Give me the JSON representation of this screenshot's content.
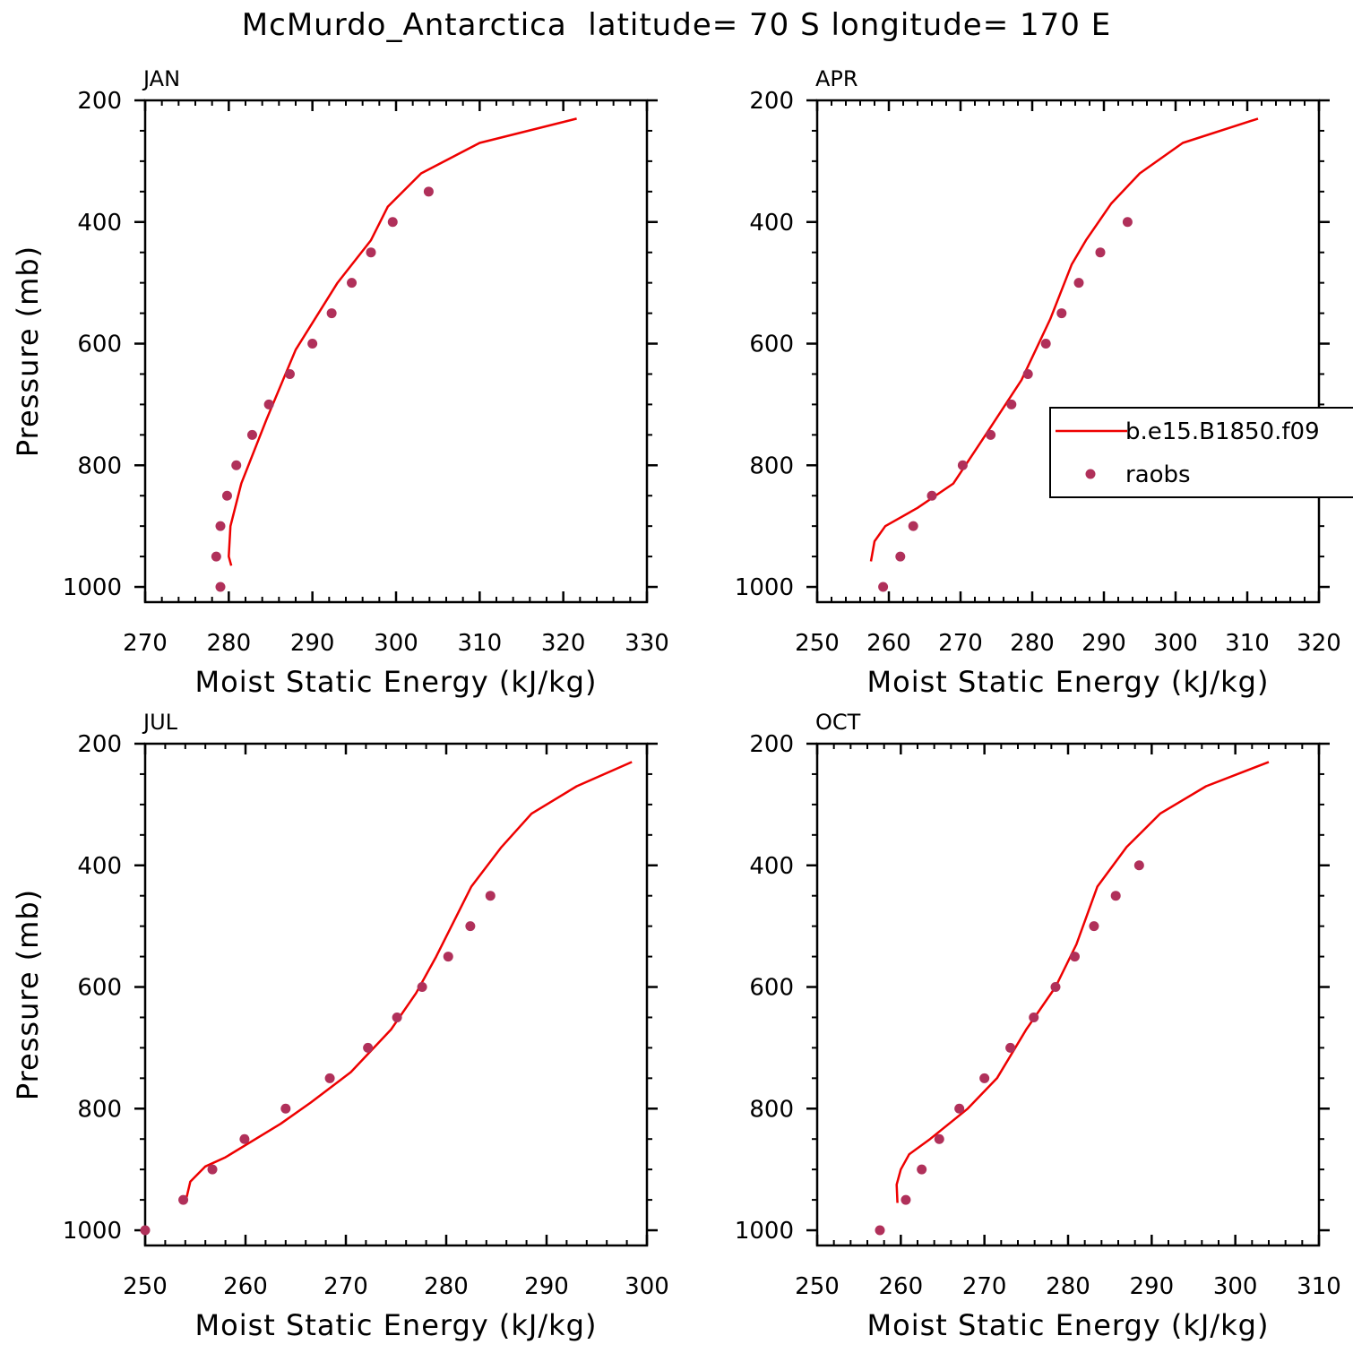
{
  "title": "McMurdo_Antarctica  latitude= 70 S longitude= 170 E",
  "legend": {
    "model_label": "b.e15.B1850.f09",
    "obs_label": "raobs"
  },
  "colors": {
    "model_line": "#ee0000",
    "obs_marker": "#b0305a",
    "axes": "#000000"
  },
  "chart_data": [
    {
      "type": "scatter",
      "panel": "JAN",
      "xlabel": "Moist Static Energy (kJ/kg)",
      "ylabel": "Pressure (mb)",
      "xlim": [
        270,
        330
      ],
      "ylim": [
        1025,
        200
      ],
      "xticks": [
        270,
        280,
        290,
        300,
        310,
        320,
        330
      ],
      "yticks": [
        200,
        400,
        600,
        800,
        1000
      ],
      "y_reversed": true,
      "series": [
        {
          "name": "b.e15.B1850.f09",
          "kind": "line",
          "points": [
            [
              280.3,
              965
            ],
            [
              280.0,
              950
            ],
            [
              280.2,
              900
            ],
            [
              281.5,
              830
            ],
            [
              284.5,
              725
            ],
            [
              288.0,
              610
            ],
            [
              293.0,
              500
            ],
            [
              297.0,
              430
            ],
            [
              299.0,
              375
            ],
            [
              303.0,
              320
            ],
            [
              310.0,
              270
            ],
            [
              321.6,
              230
            ]
          ]
        },
        {
          "name": "raobs",
          "kind": "scatter",
          "points": [
            [
              279.0,
              1000
            ],
            [
              278.5,
              950
            ],
            [
              279.0,
              900
            ],
            [
              279.8,
              850
            ],
            [
              280.9,
              800
            ],
            [
              282.8,
              750
            ],
            [
              284.8,
              700
            ],
            [
              287.3,
              650
            ],
            [
              290.0,
              600
            ],
            [
              292.3,
              550
            ],
            [
              294.7,
              500
            ],
            [
              297.0,
              450
            ],
            [
              299.6,
              400
            ],
            [
              303.9,
              350
            ]
          ]
        }
      ]
    },
    {
      "type": "scatter",
      "panel": "APR",
      "xlabel": "Moist Static Energy (kJ/kg)",
      "ylabel": "",
      "xlim": [
        250,
        320
      ],
      "ylim": [
        1025,
        200
      ],
      "xticks": [
        250,
        260,
        270,
        280,
        290,
        300,
        310,
        320
      ],
      "yticks": [
        200,
        400,
        600,
        800,
        1000
      ],
      "y_reversed": true,
      "series": [
        {
          "name": "b.e15.B1850.f09",
          "kind": "line",
          "points": [
            [
              257.5,
              958
            ],
            [
              258.0,
              925
            ],
            [
              259.5,
              900
            ],
            [
              264.0,
              870
            ],
            [
              269.0,
              830
            ],
            [
              273.5,
              750
            ],
            [
              278.5,
              660
            ],
            [
              282.5,
              560
            ],
            [
              285.5,
              470
            ],
            [
              287.5,
              430
            ],
            [
              291.0,
              370
            ],
            [
              295.0,
              320
            ],
            [
              301.0,
              270
            ],
            [
              311.5,
              230
            ]
          ]
        },
        {
          "name": "raobs",
          "kind": "scatter",
          "points": [
            [
              259.2,
              1000
            ],
            [
              261.6,
              950
            ],
            [
              263.4,
              900
            ],
            [
              266.0,
              850
            ],
            [
              270.3,
              800
            ],
            [
              274.2,
              750
            ],
            [
              277.1,
              700
            ],
            [
              279.4,
              650
            ],
            [
              281.9,
              600
            ],
            [
              284.1,
              550
            ],
            [
              286.5,
              500
            ],
            [
              289.5,
              450
            ],
            [
              293.3,
              400
            ]
          ]
        }
      ]
    },
    {
      "type": "scatter",
      "panel": "JUL",
      "xlabel": "Moist Static Energy (kJ/kg)",
      "ylabel": "Pressure (mb)",
      "xlim": [
        250,
        300
      ],
      "ylim": [
        1025,
        200
      ],
      "xticks": [
        250,
        260,
        270,
        280,
        290,
        300
      ],
      "yticks": [
        200,
        400,
        600,
        800,
        1000
      ],
      "y_reversed": true,
      "series": [
        {
          "name": "b.e15.B1850.f09",
          "kind": "line",
          "points": [
            [
              254.0,
              955
            ],
            [
              254.5,
              920
            ],
            [
              256.0,
              895
            ],
            [
              258.0,
              880
            ],
            [
              263.5,
              825
            ],
            [
              266.5,
              790
            ],
            [
              270.5,
              740
            ],
            [
              274.5,
              670
            ],
            [
              277.0,
              610
            ],
            [
              279.0,
              550
            ],
            [
              282.5,
              435
            ],
            [
              285.5,
              370
            ],
            [
              288.5,
              315
            ],
            [
              293.0,
              270
            ],
            [
              298.5,
              230
            ]
          ]
        },
        {
          "name": "raobs",
          "kind": "scatter",
          "points": [
            [
              250.0,
              1000
            ],
            [
              253.8,
              950
            ],
            [
              256.7,
              900
            ],
            [
              259.9,
              850
            ],
            [
              264.0,
              800
            ],
            [
              268.4,
              750
            ],
            [
              272.2,
              700
            ],
            [
              275.1,
              650
            ],
            [
              277.6,
              600
            ],
            [
              280.2,
              550
            ],
            [
              282.4,
              500
            ],
            [
              284.4,
              450
            ]
          ]
        }
      ]
    },
    {
      "type": "scatter",
      "panel": "OCT",
      "xlabel": "Moist Static Energy (kJ/kg)",
      "ylabel": "",
      "xlim": [
        250,
        310
      ],
      "ylim": [
        1025,
        200
      ],
      "xticks": [
        250,
        260,
        270,
        280,
        290,
        300,
        310
      ],
      "yticks": [
        200,
        400,
        600,
        800,
        1000
      ],
      "y_reversed": true,
      "series": [
        {
          "name": "b.e15.B1850.f09",
          "kind": "line",
          "points": [
            [
              259.6,
              955
            ],
            [
              259.5,
              925
            ],
            [
              260.0,
              900
            ],
            [
              261.0,
              875
            ],
            [
              263.5,
              850
            ],
            [
              268.0,
              800
            ],
            [
              271.5,
              750
            ],
            [
              275.0,
              670
            ],
            [
              278.5,
              600
            ],
            [
              281.0,
              530
            ],
            [
              283.5,
              435
            ],
            [
              287.0,
              370
            ],
            [
              291.0,
              315
            ],
            [
              296.5,
              270
            ],
            [
              304.0,
              230
            ]
          ]
        },
        {
          "name": "raobs",
          "kind": "scatter",
          "points": [
            [
              257.5,
              1000
            ],
            [
              260.6,
              950
            ],
            [
              262.5,
              900
            ],
            [
              264.6,
              850
            ],
            [
              267.0,
              800
            ],
            [
              270.0,
              750
            ],
            [
              273.1,
              700
            ],
            [
              275.9,
              650
            ],
            [
              278.5,
              600
            ],
            [
              280.8,
              550
            ],
            [
              283.1,
              500
            ],
            [
              285.7,
              450
            ],
            [
              288.5,
              400
            ]
          ]
        }
      ]
    }
  ]
}
